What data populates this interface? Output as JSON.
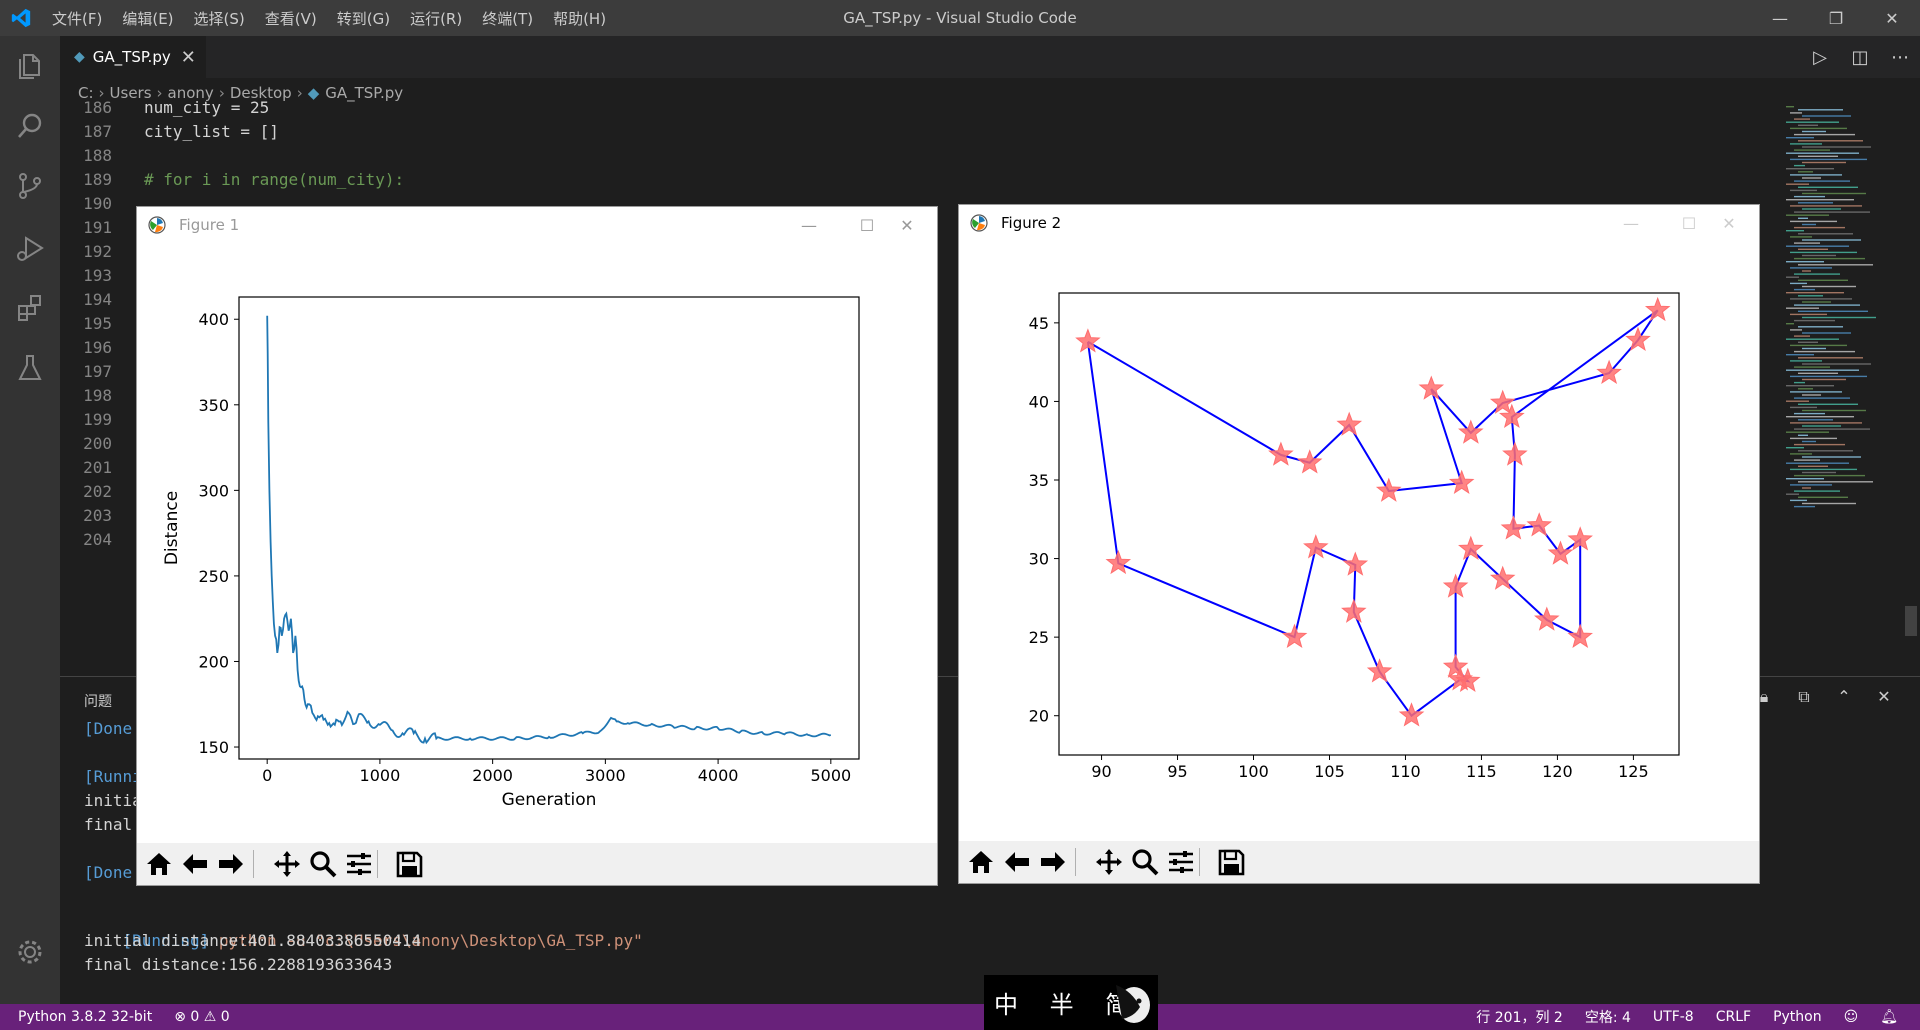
{
  "window": {
    "title": "GA_TSP.py - Visual Studio Code",
    "menu": [
      "文件(F)",
      "编辑(E)",
      "选择(S)",
      "查看(V)",
      "转到(G)",
      "运行(R)",
      "终端(T)",
      "帮助(H)"
    ],
    "minimize": "—",
    "maximize": "❐",
    "close": "✕"
  },
  "tab": {
    "label": "GA_TSP.py",
    "close": "✕"
  },
  "breadcrumb": [
    "C:",
    "Users",
    "anony",
    "Desktop",
    "GA_TSP.py"
  ],
  "editor": {
    "lines": [
      {
        "n": "186",
        "text": "num_city = 25"
      },
      {
        "n": "187",
        "text": "city_list = []"
      },
      {
        "n": "188",
        "text": ""
      },
      {
        "n": "189",
        "text": "# for i in range(num_city):"
      },
      {
        "n": "190",
        "text": ""
      },
      {
        "n": "191",
        "text": ""
      },
      {
        "n": "192",
        "text": ""
      },
      {
        "n": "193",
        "text": ""
      },
      {
        "n": "194",
        "text": ""
      },
      {
        "n": "195",
        "text": ""
      },
      {
        "n": "196",
        "text": ""
      },
      {
        "n": "197",
        "text": ""
      },
      {
        "n": "198",
        "text": ""
      },
      {
        "n": "199",
        "text": ""
      },
      {
        "n": "200",
        "text": ""
      },
      {
        "n": "201",
        "text": ""
      },
      {
        "n": "202",
        "text": ""
      },
      {
        "n": "203",
        "text": ""
      },
      {
        "n": "204",
        "text": ""
      }
    ]
  },
  "panel": {
    "tab_problems": "问题",
    "partial_lines": [
      "[Done",
      "",
      "[Runni",
      "initia",
      "final",
      "",
      "[Done"
    ],
    "run_tag": "[Running]",
    "run_cmd": "python -u \"c:\\Users\\anony\\Desktop\\GA_TSP.py\"",
    "initial": "initial distance:401.88403386550414",
    "final": "final distance:156.2288193633643"
  },
  "status": {
    "interpreter": "Python 3.8.2 32-bit",
    "problems": "⊗ 0 ⚠ 0",
    "position": "行 201，列 2",
    "spaces": "空格: 4",
    "encoding": "UTF-8",
    "eol": "CRLF",
    "language": "Python"
  },
  "ime": {
    "text": "中 半 简"
  },
  "figure1": {
    "title": "Figure 1"
  },
  "figure2": {
    "title": "Figure 2"
  },
  "chart_data": [
    {
      "type": "line",
      "xlabel": "Generation",
      "ylabel": "Distance",
      "xlim": [
        -250,
        5250
      ],
      "ylim": [
        143,
        413
      ],
      "xticks": [
        0,
        1000,
        2000,
        3000,
        4000,
        5000
      ],
      "yticks": [
        150,
        200,
        250,
        300,
        350,
        400
      ],
      "color": "#1f77b4",
      "series": [
        {
          "x": [
            0,
            5,
            10,
            20,
            30,
            40,
            50,
            70,
            90,
            110,
            130,
            150,
            170,
            190,
            210,
            230,
            250,
            270,
            300,
            330,
            360,
            400,
            450,
            500,
            550,
            600,
            650,
            700,
            750,
            800,
            900,
            1000,
            1100,
            1200,
            1300,
            1400,
            1500,
            1800,
            2200,
            2500,
            2800,
            2950,
            3050,
            3100,
            3200,
            3400,
            3600,
            3800,
            4000,
            4200,
            4400,
            4600,
            4800,
            5000
          ],
          "y": [
            402,
            380,
            340,
            300,
            270,
            250,
            235,
            215,
            205,
            220,
            215,
            225,
            228,
            218,
            225,
            205,
            215,
            195,
            185,
            178,
            175,
            170,
            168,
            166,
            164,
            163,
            165,
            168,
            166,
            167,
            165,
            163,
            160,
            158,
            158,
            155,
            155,
            155,
            155,
            156,
            158,
            159,
            167,
            165,
            164,
            163,
            162,
            161,
            161,
            159,
            158,
            158,
            157,
            157
          ]
        }
      ]
    },
    {
      "type": "scatter",
      "xlim": [
        87.2,
        128.0
      ],
      "ylim": [
        17.5,
        46.9
      ],
      "xticks": [
        90,
        95,
        100,
        105,
        110,
        115,
        120,
        125
      ],
      "yticks": [
        20,
        25,
        30,
        35,
        40,
        45
      ],
      "line_color": "#0000ff",
      "marker_color": "#ff6e6e",
      "route": [
        [
          89.1,
          43.8
        ],
        [
          101.8,
          36.6
        ],
        [
          103.7,
          36.1
        ],
        [
          106.3,
          38.5
        ],
        [
          108.9,
          34.3
        ],
        [
          113.7,
          34.8
        ],
        [
          111.7,
          40.8
        ],
        [
          114.3,
          38.0
        ],
        [
          116.4,
          39.9
        ],
        [
          123.4,
          41.8
        ],
        [
          125.3,
          43.9
        ],
        [
          126.6,
          45.8
        ],
        [
          117.0,
          39.0
        ],
        [
          117.2,
          36.6
        ],
        [
          117.1,
          31.9
        ],
        [
          118.8,
          32.1
        ],
        [
          120.2,
          30.3
        ],
        [
          121.5,
          31.2
        ],
        [
          121.5,
          25.0
        ],
        [
          119.3,
          26.1
        ],
        [
          116.4,
          28.7
        ],
        [
          114.3,
          30.6
        ],
        [
          113.3,
          28.2
        ],
        [
          113.3,
          23.1
        ],
        [
          114.1,
          22.2
        ],
        [
          113.6,
          22.3
        ],
        [
          110.4,
          20.0
        ],
        [
          108.3,
          22.8
        ],
        [
          106.6,
          26.6
        ],
        [
          106.7,
          29.6
        ],
        [
          104.1,
          30.7
        ],
        [
          102.7,
          25.0
        ],
        [
          91.1,
          29.7
        ],
        [
          89.1,
          43.8
        ]
      ]
    }
  ]
}
